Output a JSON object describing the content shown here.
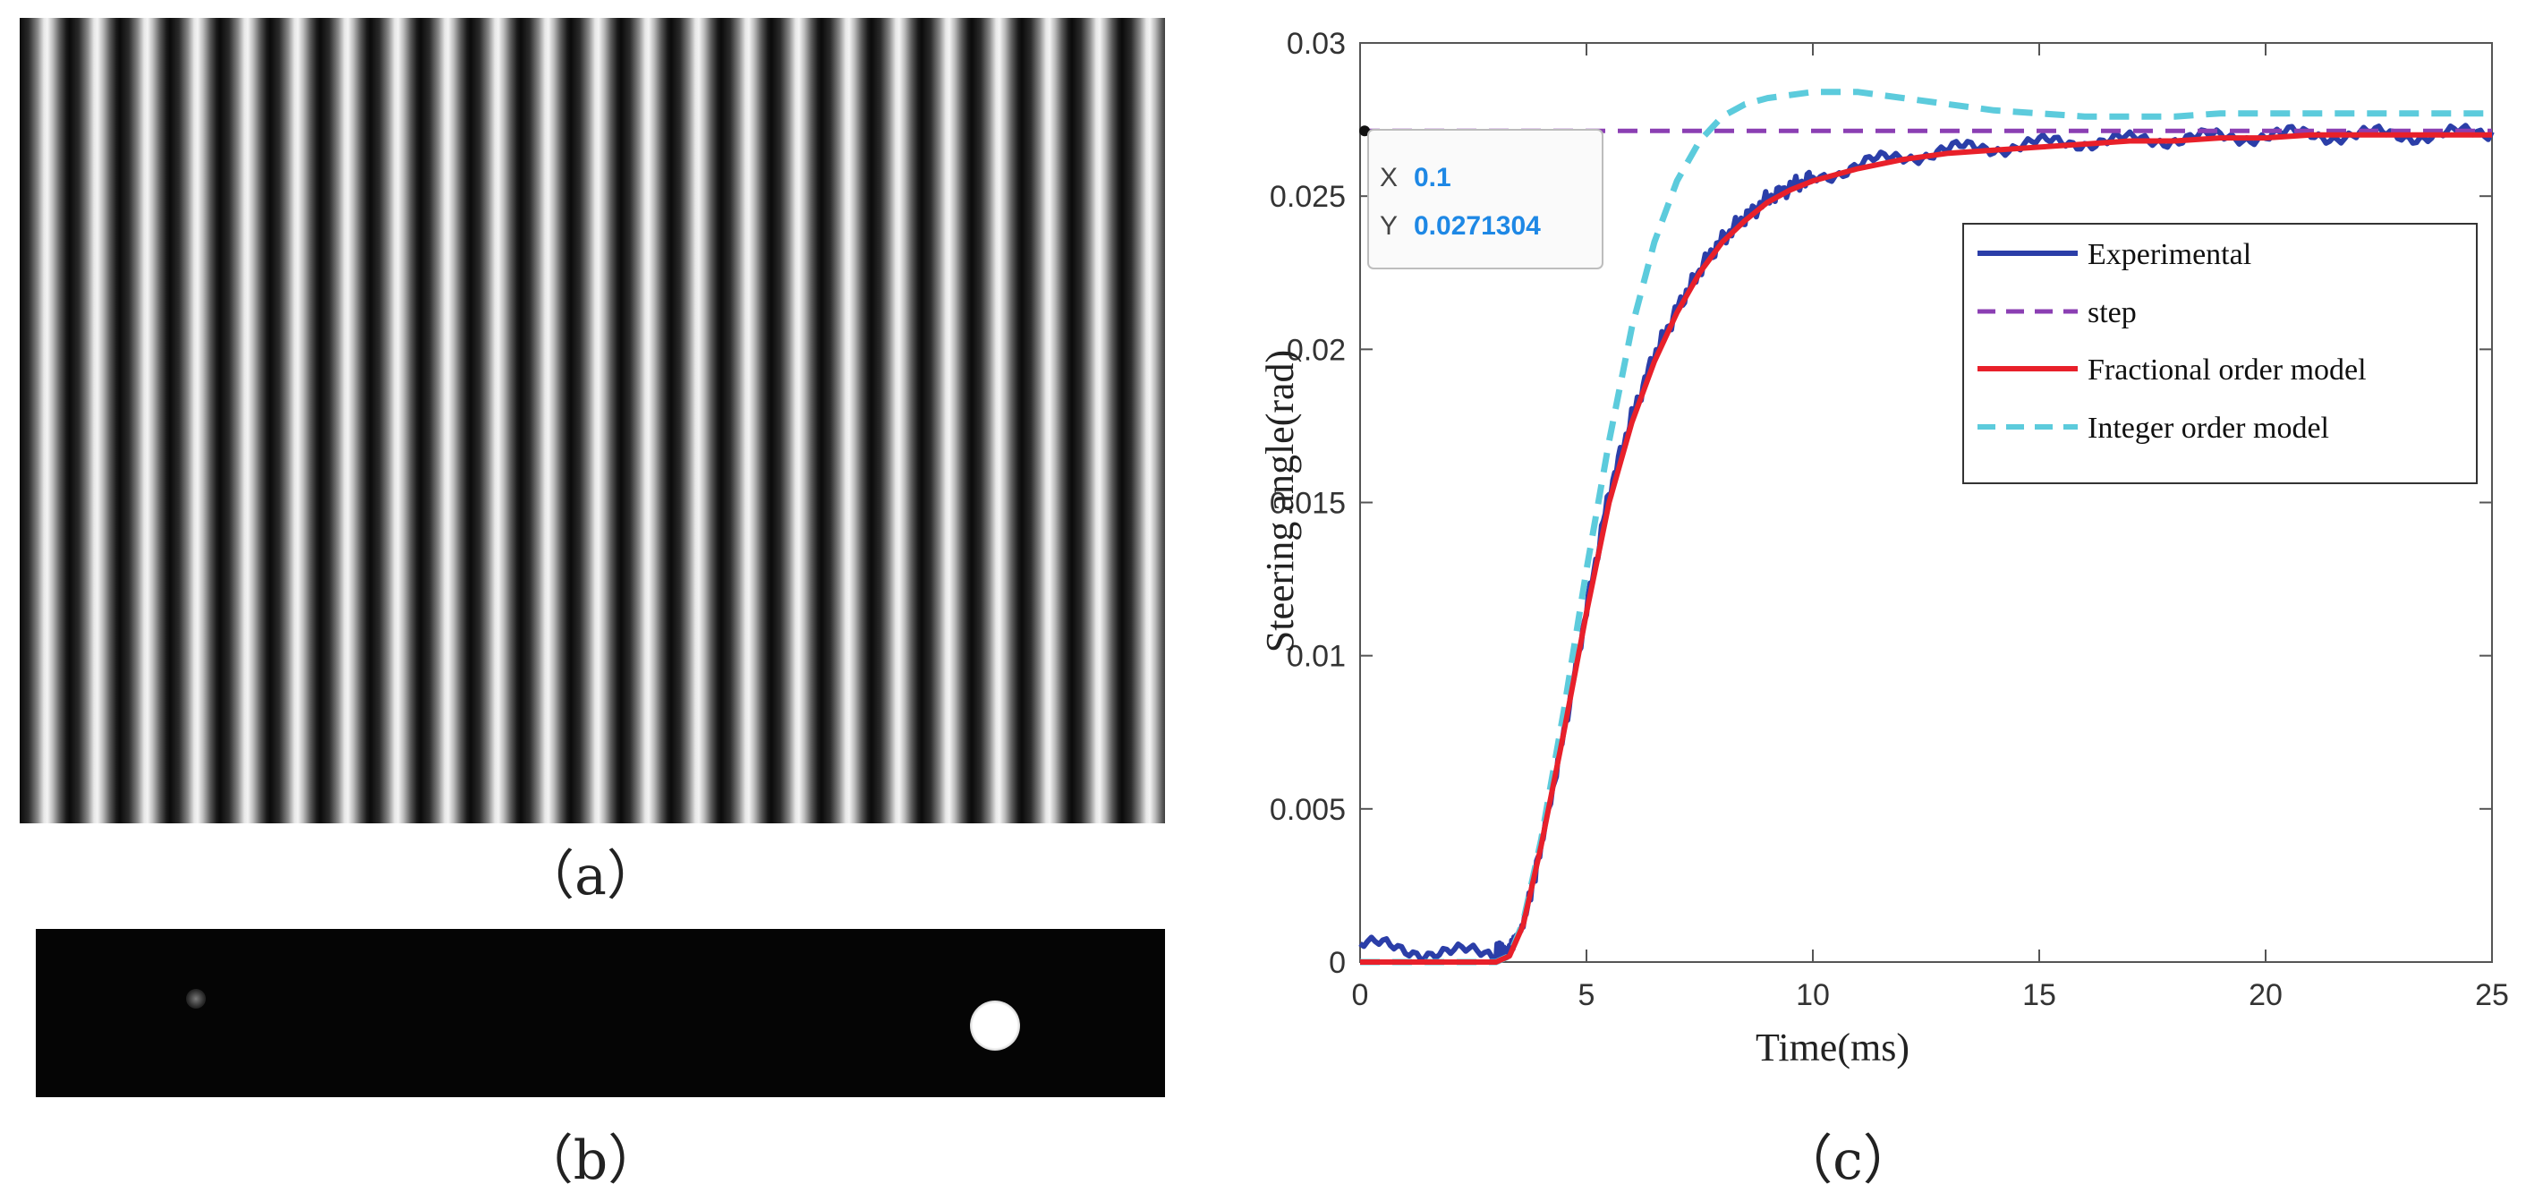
{
  "captions": {
    "a": "（a）",
    "b": "（b）",
    "c": "（c）"
  },
  "panel_a": {
    "content": "fringe-pattern-image"
  },
  "panel_b": {
    "content": "laser-spot-image"
  },
  "chart_data": {
    "type": "line",
    "title": "",
    "xlabel": "Time(ms)",
    "ylabel": "Steering angle(rad)",
    "xlim": [
      0,
      25
    ],
    "ylim": [
      0,
      0.03
    ],
    "xticks": [
      0,
      5,
      10,
      15,
      20,
      25
    ],
    "yticks": [
      0,
      0.005,
      0.01,
      0.015,
      0.02,
      0.025,
      0.03
    ],
    "xtick_labels": [
      "0",
      "5",
      "10",
      "15",
      "20",
      "25"
    ],
    "ytick_labels": [
      "0",
      "0.005",
      "0.01",
      "0.015",
      "0.02",
      "0.025",
      "0.03"
    ],
    "grid": false,
    "legend_position": "top-right",
    "series": [
      {
        "name": "Experimental",
        "color": "#2b3ea8",
        "style": "solid",
        "x": [
          0,
          1,
          2,
          3,
          3.3,
          3.6,
          4,
          4.5,
          5,
          5.5,
          6,
          6.5,
          7,
          7.5,
          8,
          8.5,
          9,
          9.5,
          10,
          11,
          12,
          13,
          14,
          15,
          16,
          17,
          18,
          19,
          20,
          21,
          22,
          23,
          24,
          25
        ],
        "values": [
          0.0006,
          0.0004,
          0.0003,
          0.0003,
          0.0004,
          0.0012,
          0.0038,
          0.0075,
          0.0115,
          0.0153,
          0.0178,
          0.0198,
          0.0213,
          0.0226,
          0.0236,
          0.0243,
          0.0249,
          0.0253,
          0.0256,
          0.026,
          0.0263,
          0.0265,
          0.0266,
          0.0267,
          0.0268,
          0.0268,
          0.0269,
          0.0269,
          0.027,
          0.027,
          0.027,
          0.027,
          0.027,
          0.0271
        ]
      },
      {
        "name": "step",
        "color": "#8b3fb3",
        "style": "dashed",
        "x": [
          0,
          25
        ],
        "values": [
          0.0271304,
          0.0271304
        ]
      },
      {
        "name": "Fractional order model",
        "color": "#e8202a",
        "style": "solid",
        "x": [
          0,
          1,
          2,
          3,
          3.3,
          3.6,
          4,
          4.5,
          5,
          5.5,
          6,
          6.5,
          7,
          7.5,
          8,
          8.5,
          9,
          9.5,
          10,
          11,
          12,
          13,
          14,
          15,
          16,
          17,
          18,
          19,
          20,
          21,
          22,
          23,
          24,
          25
        ],
        "values": [
          0,
          0,
          0,
          0,
          0.0002,
          0.0012,
          0.0038,
          0.0075,
          0.0114,
          0.015,
          0.0176,
          0.0196,
          0.0212,
          0.0225,
          0.0235,
          0.0242,
          0.0248,
          0.0252,
          0.0255,
          0.0259,
          0.0262,
          0.0264,
          0.0265,
          0.0266,
          0.0267,
          0.0268,
          0.0268,
          0.0269,
          0.0269,
          0.027,
          0.027,
          0.027,
          0.027,
          0.027
        ]
      },
      {
        "name": "Integer order model",
        "color": "#5ccbdc",
        "style": "dashed",
        "x": [
          0,
          1,
          2,
          3,
          3.3,
          3.6,
          4,
          4.5,
          5,
          5.5,
          6,
          6.5,
          7,
          7.5,
          8,
          8.5,
          9,
          9.5,
          10,
          10.5,
          11,
          12,
          13,
          14,
          15,
          16,
          17,
          18,
          19,
          20,
          21,
          22,
          23,
          24,
          25
        ],
        "values": [
          0,
          0,
          0,
          0,
          0.0002,
          0.0013,
          0.004,
          0.0082,
          0.0128,
          0.017,
          0.0207,
          0.0235,
          0.0255,
          0.0268,
          0.0276,
          0.028,
          0.0282,
          0.0283,
          0.0284,
          0.0284,
          0.0284,
          0.0282,
          0.028,
          0.0278,
          0.0277,
          0.0276,
          0.0276,
          0.0276,
          0.0277,
          0.0277,
          0.0277,
          0.0277,
          0.0277,
          0.0277,
          0.0277
        ]
      }
    ],
    "datatip": {
      "x_label": "X",
      "x_value": "0.1",
      "y_label": "Y",
      "y_value": "0.0271304",
      "x": 0.1,
      "y": 0.0271304
    }
  }
}
